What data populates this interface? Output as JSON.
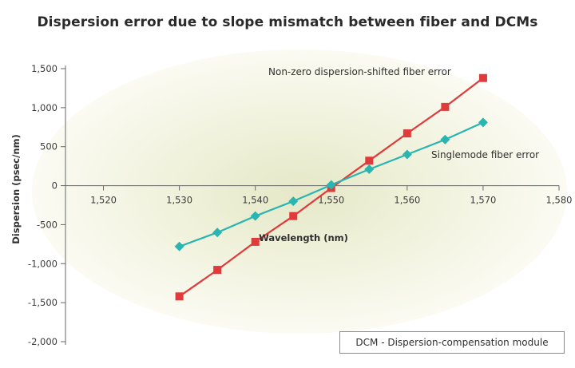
{
  "chart_data": {
    "type": "line",
    "title": "Dispersion error due to slope mismatch between fiber and DCMs",
    "xlabel": "Wavelength (nm)",
    "ylabel": "Dispersion (psec/nm)",
    "xlim": [
      1515,
      1580
    ],
    "ylim": [
      -2000,
      1500
    ],
    "x_ticks": [
      1520,
      1530,
      1540,
      1550,
      1560,
      1570,
      1580
    ],
    "x_tick_labels": [
      "1,520",
      "1,530",
      "1,540",
      "1,550",
      "1,560",
      "1,570",
      "1,580"
    ],
    "y_ticks": [
      1500,
      1000,
      500,
      0,
      -500,
      -1000,
      -1500,
      -2000
    ],
    "y_tick_labels": [
      "1,500",
      "1,000",
      "500",
      "0",
      "-500",
      "-1,000",
      "-1,500",
      "-2,000"
    ],
    "x": [
      1530,
      1535,
      1540,
      1545,
      1550,
      1555,
      1560,
      1565,
      1570
    ],
    "series": [
      {
        "name": "Non-zero dispersion-shifted fiber error",
        "color": "#e03a3a",
        "marker": "square",
        "values": [
          -1420,
          -1080,
          -720,
          -390,
          -30,
          320,
          670,
          1010,
          1380
        ]
      },
      {
        "name": "Singlemode fiber error",
        "color": "#2bb5b0",
        "marker": "diamond",
        "values": [
          -780,
          -600,
          -390,
          -200,
          10,
          210,
          400,
          590,
          810
        ]
      }
    ],
    "grid": false,
    "footnote": "DCM - Dispersion-compensation module"
  }
}
